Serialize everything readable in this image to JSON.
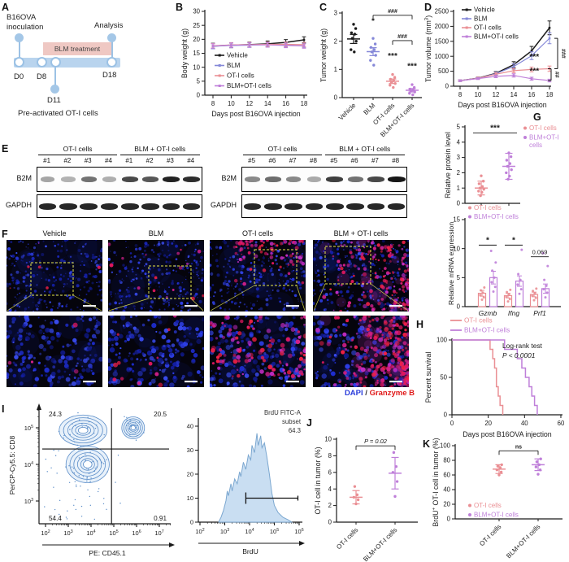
{
  "panels": {
    "a": "A",
    "b": "B",
    "c": "C",
    "d": "D",
    "e": "E",
    "f": "F",
    "g": "G",
    "h": "H",
    "i": "I",
    "j": "J",
    "k": "K"
  },
  "colors": {
    "vehicle": "#1a1a1a",
    "blm": "#8588d8",
    "oti": "#ea8f94",
    "blm_oti": "#bf7fd9",
    "contour": "#5c8ec9",
    "contour_fill": "#e8f1fa",
    "hist_fill": "#c9def2",
    "hist_edge": "#7ba7d0",
    "timeline_bar": "#b9d4ee",
    "timeline_node": "#9cc2e5",
    "timeline_fill": "#a4c7e7",
    "blm_box": "#efc8c3",
    "dapi": "#2a3cdb",
    "granzyme": "#e01a1a",
    "caption_sep": "#333333",
    "axis": "#1a1a1a",
    "yellow": "#e8e84a"
  },
  "panel_a": {
    "inoc1": "B16OVA",
    "inoc2": "inoculation",
    "analysis": "Analysis",
    "blm_treatment": "BLM treatment",
    "d0": "D0",
    "d8": "D8",
    "d11": "D11",
    "d18": "D18",
    "footer": "Pre-activated OT-I cells"
  },
  "panel_e": {
    "row_labels": [
      "B2M",
      "GAPDH"
    ],
    "blots": [
      {
        "groups": [
          {
            "label": "OT-I cells",
            "lanes": [
              "#1",
              "#2",
              "#3",
              "#4"
            ]
          },
          {
            "label": "BLM + OT-I cells",
            "lanes": [
              "#1",
              "#2",
              "#3",
              "#4"
            ]
          }
        ],
        "b2m": [
          0.38,
          0.32,
          0.6,
          0.34,
          0.78,
          0.72,
          0.95,
          0.9
        ],
        "gapdh": [
          0.92,
          0.92,
          0.92,
          0.92,
          0.92,
          0.92,
          0.92,
          0.92
        ]
      },
      {
        "groups": [
          {
            "label": "OT-I cells",
            "lanes": [
              "#5",
              "#6",
              "#7",
              "#8"
            ]
          },
          {
            "label": "BLM + OT-I cells",
            "lanes": [
              "#5",
              "#6",
              "#7",
              "#8"
            ]
          }
        ],
        "b2m": [
          0.5,
          0.62,
          0.5,
          0.36,
          0.82,
          0.6,
          0.78,
          1.0
        ],
        "gapdh": [
          0.92,
          0.92,
          0.92,
          0.92,
          0.92,
          0.92,
          0.92,
          0.92
        ]
      }
    ]
  },
  "panel_f": {
    "titles": [
      "Vehicle",
      "BLM",
      "OT-I cells",
      "BLM + OT-I cells"
    ],
    "caption": {
      "dapi": "DAPI",
      "sep": " / ",
      "marker": "Granzyme B"
    },
    "red_counts_top": [
      6,
      16,
      90,
      170
    ],
    "red_counts_bottom": [
      4,
      12,
      120,
      230
    ]
  },
  "chart_data": [
    {
      "id": "body_weight",
      "type": "line",
      "ylabel": "Body weight (g)",
      "xlabel": "Days post B16OVA injection",
      "x": [
        8,
        10,
        12,
        14,
        16,
        18
      ],
      "ylim": [
        0,
        30
      ],
      "yticks": [
        0,
        5,
        10,
        15,
        20,
        25,
        30
      ],
      "series": [
        {
          "name": "Vehicle",
          "color_key": "vehicle",
          "values": [
            17.6,
            17.9,
            18.1,
            18.4,
            18.9,
            19.8
          ],
          "err": [
            1.0,
            0.9,
            0.9,
            1.0,
            1.0,
            1.1
          ]
        },
        {
          "name": "BLM",
          "color_key": "blm",
          "values": [
            17.5,
            17.8,
            17.9,
            18.1,
            18.1,
            18.0
          ],
          "err": [
            0.9,
            0.8,
            0.8,
            0.9,
            0.9,
            0.9
          ]
        },
        {
          "name": "OT-I cells",
          "color_key": "oti",
          "values": [
            17.7,
            18.0,
            18.1,
            18.2,
            18.2,
            18.1
          ],
          "err": [
            0.8,
            0.8,
            0.8,
            0.8,
            0.8,
            0.8
          ]
        },
        {
          "name": "BLM+OT-I cells",
          "color_key": "blm_oti",
          "values": [
            17.6,
            17.9,
            18.0,
            18.0,
            17.8,
            17.6
          ],
          "err": [
            0.8,
            0.8,
            0.8,
            0.8,
            0.8,
            0.8
          ]
        }
      ]
    },
    {
      "id": "tumor_weight",
      "type": "dot_column",
      "ylabel": "Tumor weight (g)",
      "ylim": [
        0,
        3
      ],
      "yticks": [
        0,
        1,
        2,
        3
      ],
      "categories": [
        "Vehicle",
        "BLM",
        "OT-I cells",
        "BLM+OT-I cells"
      ],
      "color_keys": [
        "vehicle",
        "blm",
        "oti",
        "blm_oti"
      ],
      "dots": [
        [
          2.6,
          2.45,
          2.3,
          2.25,
          2.1,
          2.0,
          1.7,
          1.62
        ],
        [
          2.1,
          1.9,
          1.78,
          1.7,
          1.62,
          1.5,
          1.32,
          1.15
        ],
        [
          0.82,
          0.72,
          0.65,
          0.6,
          0.55,
          0.5,
          0.44,
          0.36
        ],
        [
          0.46,
          0.36,
          0.3,
          0.27,
          0.24,
          0.2,
          0.15,
          0.1
        ]
      ],
      "means": [
        2.08,
        1.63,
        0.58,
        0.26
      ],
      "sems": [
        0.16,
        0.14,
        0.08,
        0.06
      ],
      "sigs": [
        null,
        {
          "text": "*",
          "y": 2.62
        },
        {
          "text": "***",
          "y": 1.38
        },
        {
          "text": "***",
          "y": 1.02
        }
      ],
      "brackets": [
        {
          "from": 1,
          "to": 3,
          "label": "###",
          "y": 2.92
        },
        {
          "from": 2,
          "to": 3,
          "label": "###",
          "y": 2.02
        }
      ]
    },
    {
      "id": "tumor_volume",
      "type": "line",
      "ylabel_parts": {
        "pre": "Tumor volume (mm",
        "sup": "3",
        "post": ")"
      },
      "xlabel": "Days post B16OVA injection",
      "x": [
        8,
        10,
        12,
        14,
        16,
        18
      ],
      "ylim": [
        0,
        2500
      ],
      "yticks": [
        0,
        500,
        1000,
        1500,
        2000,
        2500
      ],
      "series": [
        {
          "name": "Vehicle",
          "color_key": "vehicle",
          "values": [
            185,
            270,
            430,
            720,
            1180,
            1950
          ],
          "err": [
            25,
            35,
            60,
            100,
            150,
            230
          ]
        },
        {
          "name": "BLM",
          "color_key": "blm",
          "values": [
            185,
            265,
            420,
            660,
            1020,
            1600
          ],
          "err": [
            25,
            35,
            55,
            90,
            130,
            180
          ]
        },
        {
          "name": "OT-I cells",
          "color_key": "oti",
          "values": [
            185,
            265,
            400,
            520,
            560,
            585
          ],
          "err": [
            25,
            35,
            55,
            70,
            80,
            90
          ]
        },
        {
          "name": "BLM+OT-I cells",
          "color_key": "blm_oti",
          "values": [
            185,
            255,
            330,
            360,
            250,
            190
          ],
          "err": [
            25,
            30,
            45,
            55,
            50,
            45
          ]
        }
      ],
      "annotations": [
        {
          "text": "***",
          "x": 16.3,
          "y": 900
        },
        {
          "text": "***",
          "x": 16.3,
          "y": 420
        }
      ],
      "right_brackets": [
        {
          "label": "###",
          "from_series": 1,
          "to_series": 2
        },
        {
          "label": "##",
          "from_series": 2,
          "to_series": 3
        }
      ]
    },
    {
      "id": "b2m_protein",
      "type": "dot_column",
      "ylabel": "Relative protein level",
      "ylim": [
        0,
        5
      ],
      "yticks": [
        0,
        1,
        2,
        3,
        4,
        5
      ],
      "categories": [
        "OT-I cells",
        "BLM+OT-I cells"
      ],
      "color_keys": [
        "oti",
        "blm_oti"
      ],
      "dots": [
        [
          1.8,
          1.45,
          1.28,
          1.1,
          1.0,
          0.92,
          0.8,
          0.72,
          0.5
        ],
        [
          3.3,
          3.05,
          2.82,
          2.6,
          2.42,
          2.2,
          2.0,
          1.78,
          1.58
        ]
      ],
      "means": [
        1.0,
        2.42
      ],
      "sems": [
        0.45,
        0.85
      ],
      "line_sig": {
        "text": "***",
        "y": 4.6
      },
      "legend": [
        [
          "OT-I cells"
        ],
        [
          "BLM+OT-I",
          "cells"
        ]
      ]
    },
    {
      "id": "mrna",
      "type": "bar_scatter",
      "ylabel": "Relative mRNA expression",
      "ylim": [
        0,
        15
      ],
      "yticks": [
        0,
        5,
        10,
        15
      ],
      "categories": [
        "Gzmb",
        "Ifng",
        "Prf1"
      ],
      "italic_categories": true,
      "series": [
        {
          "name": "OT-I cells",
          "color_key": "oti",
          "values": [
            2.3,
            1.9,
            2.1
          ],
          "err": [
            0.5,
            0.4,
            0.4
          ],
          "dots": [
            [
              1.2,
              1.6,
              2.0,
              2.4,
              2.8,
              3.3
            ],
            [
              0.9,
              1.3,
              1.7,
              2.1,
              2.5,
              2.9
            ],
            [
              1.1,
              1.5,
              1.9,
              2.3,
              2.7,
              3.1
            ]
          ]
        },
        {
          "name": "BLM+OT-I cells",
          "color_key": "blm_oti",
          "values": [
            5.0,
            4.4,
            3.1
          ],
          "err": [
            1.1,
            0.9,
            0.8
          ],
          "dots": [
            [
              2.6,
              3.4,
              4.2,
              5.0,
              6.2,
              7.6,
              9.6
            ],
            [
              2.2,
              3.0,
              3.8,
              4.6,
              5.6,
              9.8
            ],
            [
              1.6,
              2.4,
              3.0,
              3.6,
              4.6,
              7.0,
              9.2
            ]
          ]
        }
      ],
      "sigs": [
        {
          "text": "*",
          "y": 10.6
        },
        {
          "text": "*",
          "y": 10.6
        },
        {
          "text": "0.069",
          "y": 8.6
        }
      ]
    },
    {
      "id": "survival",
      "type": "survival",
      "ylabel": "Percent survival",
      "xlabel": "Days post B16OVA injection",
      "xlim": [
        0,
        60
      ],
      "xticks": [
        0,
        20,
        40,
        60
      ],
      "yticks": [
        0,
        50,
        100
      ],
      "note_line1": "Log-rank test",
      "note_line2": "P < 0.0001",
      "series": [
        {
          "name": "OT-I cells",
          "color_key": "oti",
          "drops": [
            [
              21,
              87.5
            ],
            [
              22.5,
              75
            ],
            [
              23.5,
              62.5
            ],
            [
              24.5,
              37.5
            ],
            [
              25.5,
              25
            ],
            [
              26.5,
              12.5
            ],
            [
              28,
              0
            ]
          ]
        },
        {
          "name": "BLM+OT-I cells",
          "color_key": "blm_oti",
          "drops": [
            [
              29,
              87.5
            ],
            [
              36,
              75
            ],
            [
              38.5,
              62.5
            ],
            [
              40.5,
              50
            ],
            [
              42.5,
              37.5
            ],
            [
              44,
              25
            ],
            [
              45.5,
              12.5
            ],
            [
              47,
              0
            ]
          ]
        }
      ]
    },
    {
      "id": "flow_cd8_cd45",
      "type": "flow",
      "ylabel": "PerCP-Cy5.5: CD8",
      "xlabel": "PE: CD45.1",
      "x_exponents": [
        2,
        3,
        4,
        5,
        6,
        7
      ],
      "y_exponents": [
        3,
        4,
        5
      ],
      "quadrants": {
        "tl": "24.3",
        "tr": "20.5",
        "bl": "54.4",
        "br": "0.91"
      },
      "clusters": [
        {
          "x": 3.65,
          "y": 4.93,
          "rx": 1.05,
          "ry": 0.42
        },
        {
          "x": 5.85,
          "y": 5.0,
          "rx": 0.5,
          "ry": 0.3
        },
        {
          "x": 3.85,
          "y": 4.0,
          "rx": 0.95,
          "ry": 0.5
        }
      ],
      "gate_x": 4.9,
      "gate_y": 4.42
    },
    {
      "id": "brdu_hist",
      "type": "histogram",
      "xlabel": "BrdU",
      "x_exponents": [
        2,
        3,
        4,
        5,
        6
      ],
      "yticks": [
        0,
        10,
        20,
        30,
        40
      ],
      "label_lines": [
        "BrdU FITC-A",
        "subset",
        "64.3"
      ],
      "curve": [
        [
          2.75,
          0
        ],
        [
          2.85,
          2
        ],
        [
          2.95,
          5
        ],
        [
          3.05,
          9
        ],
        [
          3.1,
          13
        ],
        [
          3.15,
          11
        ],
        [
          3.25,
          16
        ],
        [
          3.3,
          13
        ],
        [
          3.4,
          18
        ],
        [
          3.5,
          16
        ],
        [
          3.6,
          21
        ],
        [
          3.65,
          19
        ],
        [
          3.75,
          25
        ],
        [
          3.85,
          22
        ],
        [
          3.95,
          28
        ],
        [
          4.05,
          26
        ],
        [
          4.1,
          32
        ],
        [
          4.2,
          29
        ],
        [
          4.3,
          37
        ],
        [
          4.35,
          32
        ],
        [
          4.45,
          36
        ],
        [
          4.5,
          31
        ],
        [
          4.6,
          33
        ],
        [
          4.7,
          27
        ],
        [
          4.8,
          20
        ],
        [
          4.9,
          12
        ],
        [
          5.0,
          7
        ],
        [
          5.15,
          4
        ],
        [
          5.35,
          2
        ],
        [
          5.55,
          1
        ],
        [
          5.7,
          0
        ]
      ],
      "gate": {
        "y": 10,
        "x_from": 3.85,
        "x_to": 5.95
      }
    },
    {
      "id": "oti_in_tumor",
      "type": "dot_column",
      "ylabel": "OT-I cell in tumor (%)",
      "ylim": [
        0,
        10
      ],
      "yticks": [
        0,
        2,
        4,
        6,
        8,
        10
      ],
      "categories": [
        "OT-I cells",
        "BLM+OT-I cells"
      ],
      "color_keys": [
        "oti",
        "blm_oti"
      ],
      "dots": [
        [
          2.2,
          2.7,
          3.0,
          3.3,
          4.3
        ],
        [
          3.1,
          4.9,
          6.0,
          6.7,
          8.4
        ]
      ],
      "means": [
        3.0,
        5.9
      ],
      "sems": [
        0.8,
        1.9
      ],
      "brackets": [
        {
          "from": 0,
          "to": 1,
          "label": "P = 0.02",
          "italic": true,
          "y": 9.2
        }
      ]
    },
    {
      "id": "brdu_oti_in_tumor",
      "type": "dot_column",
      "ylabel_parts": {
        "pre": "BrdU",
        "sup": "+",
        "post": " OT-I cell in tumor (%)"
      },
      "ylim": [
        0,
        100
      ],
      "yticks": [
        0,
        20,
        40,
        60,
        80,
        100
      ],
      "categories": [
        "OT-I cells",
        "BLM+OT-I cells"
      ],
      "color_keys": [
        "oti",
        "blm_oti"
      ],
      "dots": [
        [
          60,
          64,
          67,
          70,
          72,
          74
        ],
        [
          61,
          67,
          71,
          74,
          78,
          82
        ]
      ],
      "means": [
        68,
        74
      ],
      "sems": [
        6,
        8
      ],
      "brackets": [
        {
          "from": 0,
          "to": 1,
          "label": "ns",
          "y": 93
        }
      ],
      "legend": [
        [
          "OT-I cells"
        ],
        [
          "BLM+OT-I cells"
        ]
      ]
    }
  ]
}
